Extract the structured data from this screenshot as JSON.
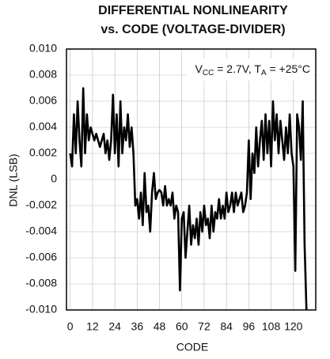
{
  "chart_data": {
    "type": "line",
    "title_lines": [
      "DIFFERENTIAL NONLINEARITY",
      "vs. CODE (VOLTAGE-DIVIDER)"
    ],
    "xlabel": "CODE",
    "ylabel": "DNL (LSB)",
    "annotation_parts": [
      "V",
      "CC",
      " = 2.7V, T",
      "A",
      " = +25°C"
    ],
    "color": "#000000",
    "grid": true,
    "xlim": [
      -2,
      132
    ],
    "xticks": [
      0,
      12,
      24,
      36,
      48,
      60,
      72,
      84,
      96,
      108,
      120
    ],
    "ylim": [
      -0.01,
      0.01
    ],
    "yticks": [
      {
        "value": 0.01,
        "label": "0.010"
      },
      0.008,
      0.006,
      0.004,
      0.002,
      0,
      -0.002,
      -0.004,
      -0.006,
      -0.008,
      {
        "value": -0.01,
        "label": "-0.010"
      }
    ],
    "x": [
      0,
      1,
      2,
      3,
      4,
      5,
      6,
      7,
      8,
      9,
      10,
      11,
      12,
      13,
      14,
      15,
      16,
      17,
      18,
      19,
      20,
      21,
      22,
      23,
      24,
      25,
      26,
      27,
      28,
      29,
      30,
      31,
      32,
      33,
      34,
      35,
      36,
      37,
      38,
      39,
      40,
      41,
      42,
      43,
      44,
      45,
      46,
      47,
      48,
      49,
      50,
      51,
      52,
      53,
      54,
      55,
      56,
      57,
      58,
      59,
      60,
      61,
      62,
      63,
      64,
      65,
      66,
      67,
      68,
      69,
      70,
      71,
      72,
      73,
      74,
      75,
      76,
      77,
      78,
      79,
      80,
      81,
      82,
      83,
      84,
      85,
      86,
      87,
      88,
      89,
      90,
      91,
      92,
      93,
      94,
      95,
      96,
      97,
      98,
      99,
      100,
      101,
      102,
      103,
      104,
      105,
      106,
      107,
      108,
      109,
      110,
      111,
      112,
      113,
      114,
      115,
      116,
      117,
      118,
      119,
      120,
      121,
      122,
      123,
      124,
      125,
      126,
      127
    ],
    "values": [
      0.002,
      0.001,
      0.005,
      0.002,
      0.006,
      0.003,
      0.001,
      0.007,
      0.002,
      0.005,
      0.003,
      0.004,
      0.0035,
      0.003,
      0.0035,
      0.003,
      0.0025,
      0.003,
      0.0035,
      0.002,
      0.003,
      0.0015,
      0.003,
      0.0065,
      0.002,
      0.005,
      0.001,
      0.006,
      0.002,
      0.004,
      0.003,
      0.005,
      0.0025,
      0.004,
      0.002,
      -0.002,
      -0.0015,
      -0.003,
      -0.001,
      -0.0035,
      0.0005,
      -0.0025,
      -0.002,
      -0.004,
      -0.001,
      0.0005,
      -0.0015,
      -0.001,
      -0.0008,
      -0.001,
      -0.002,
      -0.0005,
      -0.002,
      -0.0015,
      -0.002,
      -0.001,
      -0.003,
      -0.002,
      -0.0025,
      -0.0085,
      -0.003,
      -0.0025,
      -0.006,
      -0.004,
      -0.002,
      -0.005,
      -0.0035,
      -0.0045,
      -0.003,
      -0.005,
      -0.0025,
      -0.004,
      -0.002,
      -0.0035,
      -0.003,
      -0.0045,
      -0.002,
      -0.004,
      -0.0025,
      -0.003,
      -0.0015,
      -0.003,
      -0.002,
      -0.003,
      -0.001,
      -0.0025,
      -0.002,
      -0.001,
      -0.0025,
      -0.001,
      -0.002,
      -0.0015,
      -0.001,
      -0.0025,
      -0.002,
      -0.001,
      0.003,
      -0.0015,
      0.002,
      0.0005,
      0.004,
      0.001,
      0.003,
      0.0045,
      0.0015,
      0.005,
      0.002,
      0.0045,
      0.001,
      0.006,
      0.003,
      0.005,
      0.002,
      0.0045,
      0.003,
      0.0015,
      0.004,
      0.002,
      0.005,
      0.002,
      0.001,
      -0.007,
      0.005,
      0.004,
      0.0015,
      0.006,
      -0.005,
      -0.01
    ]
  }
}
